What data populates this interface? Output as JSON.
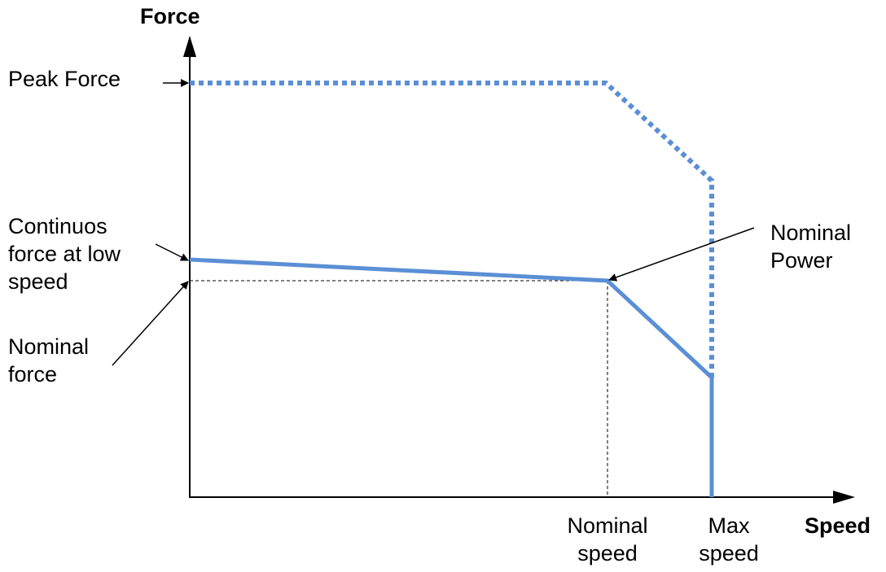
{
  "axes": {
    "y_title": "Force",
    "x_title": "Speed"
  },
  "labels": {
    "peak_force": "Peak Force",
    "continuous_force": "Continuos\nforce at low\nspeed",
    "nominal_force": "Nominal\nforce",
    "nominal_power": "Nominal\nPower",
    "nominal_speed": "Nominal\nspeed",
    "max_speed": "Max\nspeed"
  },
  "colors": {
    "curve": "#5b8fd5",
    "axis": "#000000"
  }
}
